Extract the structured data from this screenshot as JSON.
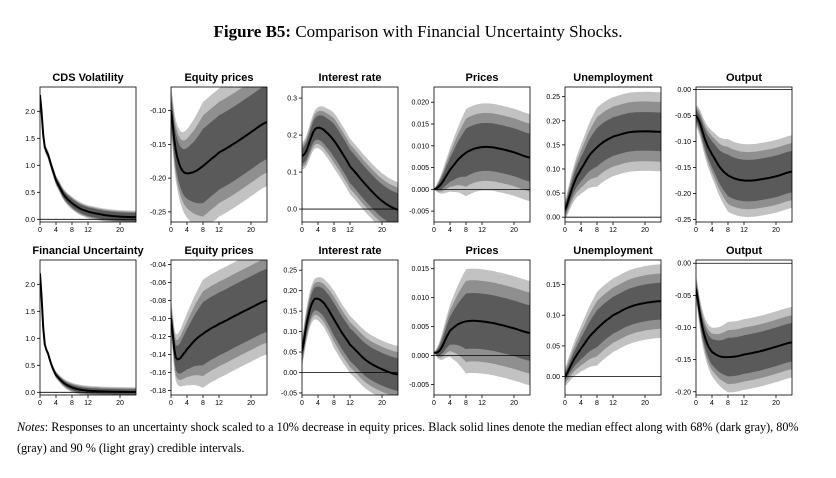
{
  "figure": {
    "label": "Figure B5:",
    "title": "Comparison with Financial Uncertainty Shocks."
  },
  "notes": {
    "label": "Notes",
    "text": ": Responses to an uncertainty shock scaled to a 10% decrease in equity prices. Black solid lines denote the median effect along with 68% (dark gray), 80% (gray) and 90 % (light gray) credible intervals."
  },
  "colors": {
    "band90": "#c2c2c2",
    "band80": "#8f8f8f",
    "band68": "#5a5a5a",
    "median": "#000000"
  },
  "chart_data": [
    {
      "type": "area",
      "row": 1,
      "col": 1,
      "title": "CDS Volatility",
      "xlim": [
        0,
        24
      ],
      "xticks": [
        0,
        4,
        8,
        12,
        20
      ],
      "ylim": [
        -0.05,
        2.45
      ],
      "yticks": [
        0.0,
        0.5,
        1.0,
        1.5,
        2.0
      ],
      "ytick_labels": [
        "0.0",
        "0.5",
        "1.0",
        "1.5",
        "2.0"
      ],
      "x": [
        0,
        1,
        2,
        3,
        4,
        6,
        8,
        10,
        12,
        16,
        20,
        24
      ],
      "median": [
        2.3,
        1.42,
        1.2,
        0.95,
        0.72,
        0.45,
        0.3,
        0.2,
        0.14,
        0.08,
        0.05,
        0.04
      ],
      "band68": [
        0.03,
        0.08
      ],
      "band80": [
        0.05,
        0.1
      ],
      "band90": [
        0.07,
        0.12
      ]
    },
    {
      "type": "area",
      "row": 1,
      "col": 2,
      "title": "Equity prices",
      "xlim": [
        0,
        24
      ],
      "xticks": [
        0,
        4,
        8,
        12,
        20
      ],
      "ylim": [
        -0.265,
        -0.065
      ],
      "yticks": [
        -0.25,
        -0.2,
        -0.15,
        -0.1
      ],
      "ytick_labels": [
        "-0.25",
        "-0.20",
        "-0.15",
        "-0.10"
      ],
      "x": [
        0,
        1,
        2,
        3,
        4,
        5,
        6,
        8,
        10,
        12,
        16,
        20,
        24
      ],
      "median": [
        -0.1,
        -0.152,
        -0.178,
        -0.19,
        -0.193,
        -0.192,
        -0.19,
        -0.182,
        -0.172,
        -0.162,
        -0.148,
        -0.132,
        -0.117
      ],
      "band68": [
        0.02,
        0.055
      ],
      "band80": [
        0.028,
        0.075
      ],
      "band90": [
        0.036,
        0.095
      ]
    },
    {
      "type": "area",
      "row": 1,
      "col": 3,
      "title": "Interest rate",
      "xlim": [
        0,
        24
      ],
      "xticks": [
        0,
        4,
        8,
        12,
        20
      ],
      "ylim": [
        -0.035,
        0.33
      ],
      "yticks": [
        0.0,
        0.1,
        0.2,
        0.3
      ],
      "ytick_labels": [
        "0.0",
        "0.1",
        "0.2",
        "0.3"
      ],
      "x": [
        0,
        1,
        2,
        3,
        4,
        5,
        6,
        8,
        10,
        12,
        16,
        20,
        24
      ],
      "median": [
        0.143,
        0.155,
        0.185,
        0.212,
        0.22,
        0.217,
        0.208,
        0.185,
        0.152,
        0.115,
        0.065,
        0.022,
        -0.002
      ],
      "band68": [
        0.02,
        0.045
      ],
      "band80": [
        0.028,
        0.06
      ],
      "band90": [
        0.036,
        0.075
      ]
    },
    {
      "type": "area",
      "row": 1,
      "col": 4,
      "title": "Prices",
      "xlim": [
        0,
        24
      ],
      "xticks": [
        0,
        4,
        8,
        12,
        20
      ],
      "ylim": [
        -0.0075,
        0.0235
      ],
      "yticks": [
        -0.005,
        0.0,
        0.005,
        0.01,
        0.015,
        0.02
      ],
      "ytick_labels": [
        "-0.005",
        "0.000",
        "0.005",
        "0.010",
        "0.015",
        "0.020"
      ],
      "x": [
        0,
        1,
        2,
        3,
        4,
        6,
        8,
        10,
        12,
        14,
        16,
        20,
        24
      ],
      "median": [
        0.0,
        0.0005,
        0.0015,
        0.003,
        0.0045,
        0.0068,
        0.0084,
        0.0093,
        0.0097,
        0.0097,
        0.0094,
        0.0085,
        0.0073
      ],
      "band68": [
        0.0,
        0.0055
      ],
      "band80": [
        0.0,
        0.0078
      ],
      "band90": [
        0.0,
        0.01
      ]
    },
    {
      "type": "area",
      "row": 1,
      "col": 5,
      "title": "Unemployment",
      "xlim": [
        0,
        24
      ],
      "xticks": [
        0,
        4,
        8,
        12,
        20
      ],
      "ylim": [
        -0.01,
        0.27
      ],
      "yticks": [
        0.0,
        0.05,
        0.1,
        0.15,
        0.2,
        0.25
      ],
      "ytick_labels": [
        "0.00",
        "0.05",
        "0.10",
        "0.15",
        "0.20",
        "0.25"
      ],
      "x": [
        0,
        1,
        2,
        3,
        4,
        6,
        8,
        10,
        12,
        16,
        20,
        24
      ],
      "median": [
        0.015,
        0.04,
        0.065,
        0.085,
        0.1,
        0.127,
        0.145,
        0.158,
        0.167,
        0.176,
        0.178,
        0.177
      ],
      "band68": [
        0.01,
        0.04
      ],
      "band80": [
        0.015,
        0.062
      ],
      "band90": [
        0.02,
        0.082
      ]
    },
    {
      "type": "area",
      "row": 1,
      "col": 6,
      "title": "Output",
      "xlim": [
        0,
        24
      ],
      "xticks": [
        0,
        4,
        8,
        12,
        20
      ],
      "ylim": [
        -0.255,
        0.005
      ],
      "yticks": [
        -0.25,
        -0.2,
        -0.15,
        -0.1,
        -0.05,
        0.0
      ],
      "ytick_labels": [
        "-0.25",
        "-0.20",
        "-0.15",
        "-0.10",
        "-0.05",
        "0.00"
      ],
      "x": [
        0,
        1,
        2,
        3,
        4,
        6,
        8,
        10,
        12,
        14,
        16,
        20,
        24
      ],
      "median": [
        -0.05,
        -0.065,
        -0.09,
        -0.11,
        -0.125,
        -0.15,
        -0.165,
        -0.172,
        -0.175,
        -0.175,
        -0.173,
        -0.167,
        -0.158
      ],
      "band68": [
        0.01,
        0.04
      ],
      "band80": [
        0.015,
        0.055
      ],
      "band90": [
        0.02,
        0.07
      ]
    },
    {
      "type": "area",
      "row": 2,
      "col": 1,
      "title": "Financial Uncertainty",
      "xlim": [
        0,
        24
      ],
      "xticks": [
        0,
        4,
        8,
        12,
        20
      ],
      "ylim": [
        -0.05,
        2.45
      ],
      "yticks": [
        0.0,
        0.5,
        1.0,
        1.5,
        2.0
      ],
      "ytick_labels": [
        "0.0",
        "0.5",
        "1.0",
        "1.5",
        "2.0"
      ],
      "x": [
        0,
        1,
        2,
        3,
        4,
        6,
        8,
        10,
        12,
        16,
        20,
        24
      ],
      "median": [
        2.2,
        1.0,
        0.72,
        0.48,
        0.32,
        0.17,
        0.09,
        0.05,
        0.03,
        0.015,
        0.008,
        0.005
      ],
      "band68": [
        0.02,
        0.05
      ],
      "band80": [
        0.03,
        0.07
      ],
      "band90": [
        0.04,
        0.09
      ]
    },
    {
      "type": "area",
      "row": 2,
      "col": 2,
      "title": "Equity prices",
      "xlim": [
        0,
        24
      ],
      "xticks": [
        0,
        4,
        8,
        12,
        20
      ],
      "ylim": [
        -0.185,
        -0.035
      ],
      "yticks": [
        -0.18,
        -0.16,
        -0.14,
        -0.12,
        -0.1,
        -0.08,
        -0.06,
        -0.04
      ],
      "ytick_labels": [
        "-0.18",
        "-0.16",
        "-0.14",
        "-0.12",
        "-0.10",
        "-0.08",
        "-0.06",
        "-0.04"
      ],
      "x": [
        0,
        1,
        2,
        3,
        4,
        6,
        8,
        10,
        12,
        16,
        20,
        24
      ],
      "median": [
        -0.1,
        -0.14,
        -0.145,
        -0.14,
        -0.134,
        -0.124,
        -0.117,
        -0.111,
        -0.106,
        -0.097,
        -0.088,
        -0.08
      ],
      "band68": [
        0.01,
        0.035
      ],
      "band80": [
        0.015,
        0.047
      ],
      "band90": [
        0.02,
        0.06
      ]
    },
    {
      "type": "area",
      "row": 2,
      "col": 3,
      "title": "Interest rate",
      "xlim": [
        0,
        24
      ],
      "xticks": [
        0,
        4,
        8,
        12,
        20
      ],
      "ylim": [
        -0.055,
        0.275
      ],
      "yticks": [
        -0.05,
        0.0,
        0.05,
        0.1,
        0.15,
        0.2,
        0.25
      ],
      "ytick_labels": [
        "-0.05",
        "0.00",
        "0.05",
        "0.10",
        "0.15",
        "0.20",
        "0.25"
      ],
      "x": [
        0,
        1,
        2,
        3,
        4,
        5,
        6,
        8,
        10,
        12,
        16,
        20,
        24
      ],
      "median": [
        0.052,
        0.11,
        0.155,
        0.178,
        0.18,
        0.174,
        0.162,
        0.13,
        0.097,
        0.068,
        0.03,
        0.008,
        -0.005
      ],
      "band68": [
        0.02,
        0.04
      ],
      "band80": [
        0.028,
        0.055
      ],
      "band90": [
        0.036,
        0.07
      ]
    },
    {
      "type": "area",
      "row": 2,
      "col": 4,
      "title": "Prices",
      "xlim": [
        0,
        24
      ],
      "xticks": [
        0,
        4,
        8,
        12,
        20
      ],
      "ylim": [
        -0.0068,
        0.0165
      ],
      "yticks": [
        -0.005,
        0.0,
        0.005,
        0.01,
        0.015
      ],
      "ytick_labels": [
        "-0.005",
        "0.000",
        "0.005",
        "0.010",
        "0.015"
      ],
      "x": [
        0,
        1,
        2,
        3,
        4,
        6,
        8,
        10,
        12,
        14,
        16,
        20,
        24
      ],
      "median": [
        0.0005,
        0.0006,
        0.0015,
        0.003,
        0.0043,
        0.0054,
        0.0059,
        0.006,
        0.0059,
        0.0057,
        0.0054,
        0.0047,
        0.0039
      ],
      "band68": [
        0.0,
        0.0048
      ],
      "band80": [
        0.0,
        0.007
      ],
      "band90": [
        0.0,
        0.009
      ]
    },
    {
      "type": "area",
      "row": 2,
      "col": 5,
      "title": "Unemployment",
      "xlim": [
        0,
        24
      ],
      "xticks": [
        0,
        4,
        8,
        12,
        20
      ],
      "ylim": [
        -0.03,
        0.19
      ],
      "yticks": [
        0.0,
        0.05,
        0.1,
        0.15
      ],
      "ytick_labels": [
        "0.00",
        "0.05",
        "0.10",
        "0.15"
      ],
      "x": [
        0,
        1,
        2,
        3,
        4,
        6,
        8,
        10,
        12,
        16,
        20,
        24
      ],
      "median": [
        0.0,
        0.012,
        0.025,
        0.036,
        0.046,
        0.064,
        0.078,
        0.09,
        0.1,
        0.113,
        0.12,
        0.123
      ],
      "band68": [
        0.005,
        0.03
      ],
      "band80": [
        0.01,
        0.045
      ],
      "band90": [
        0.015,
        0.06
      ]
    },
    {
      "type": "area",
      "row": 2,
      "col": 6,
      "title": "Output",
      "xlim": [
        0,
        24
      ],
      "xticks": [
        0,
        4,
        8,
        12,
        20
      ],
      "ylim": [
        -0.205,
        0.005
      ],
      "yticks": [
        -0.2,
        -0.15,
        -0.1,
        -0.05,
        0.0
      ],
      "ytick_labels": [
        "-0.20",
        "-0.15",
        "-0.10",
        "-0.05",
        "0.00"
      ],
      "x": [
        0,
        1,
        2,
        3,
        4,
        6,
        8,
        10,
        12,
        16,
        20,
        24
      ],
      "median": [
        -0.04,
        -0.08,
        -0.11,
        -0.128,
        -0.138,
        -0.145,
        -0.146,
        -0.145,
        -0.142,
        -0.137,
        -0.13,
        -0.123
      ],
      "band68": [
        0.01,
        0.03
      ],
      "band80": [
        0.015,
        0.042
      ],
      "band90": [
        0.02,
        0.055
      ]
    }
  ]
}
